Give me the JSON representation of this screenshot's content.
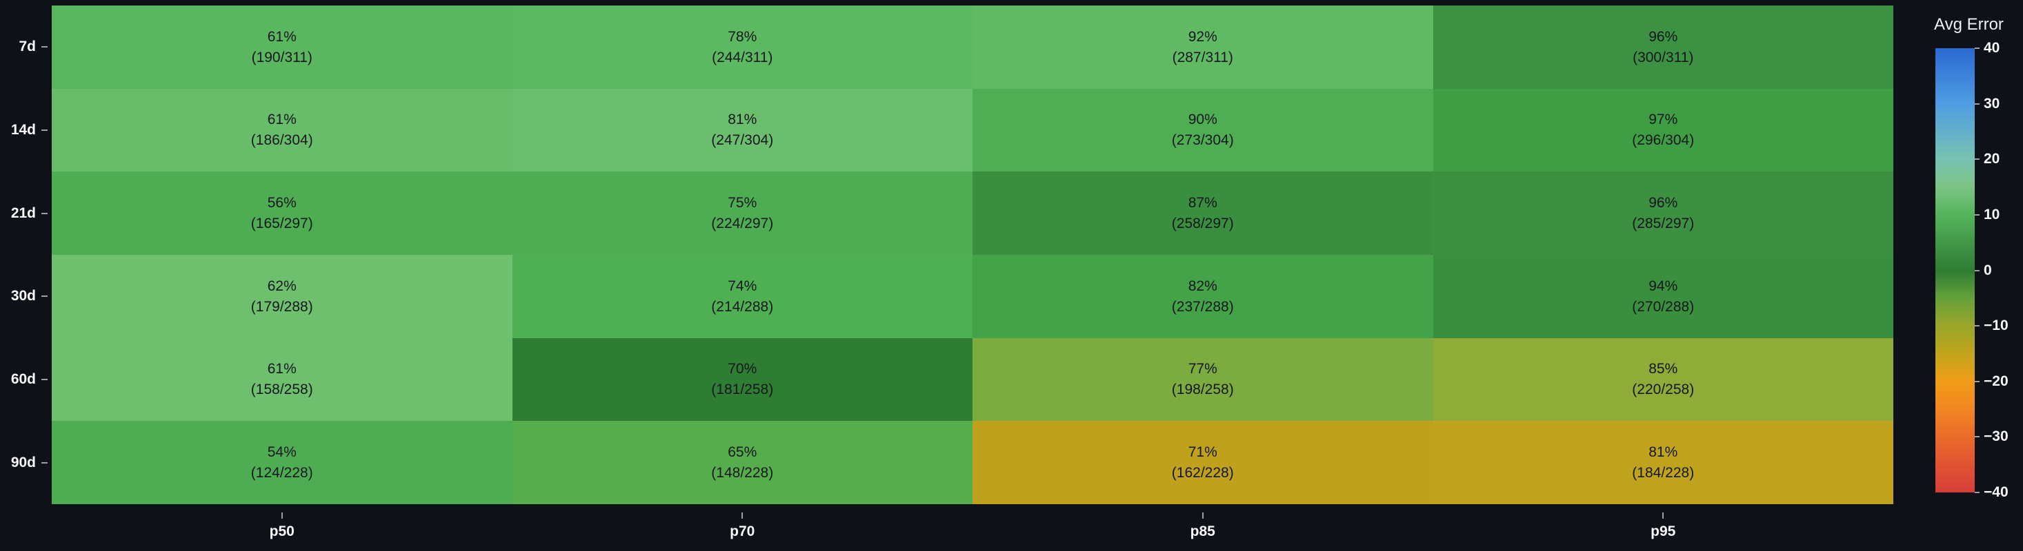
{
  "background": "#0e1117",
  "chart_data": {
    "type": "heatmap",
    "title": "",
    "xlabel": "",
    "ylabel": "",
    "x_labels": [
      "p50",
      "p70",
      "p85",
      "p95"
    ],
    "y_labels": [
      "7d",
      "14d",
      "21d",
      "30d",
      "60d",
      "90d"
    ],
    "cell_text_color": "#14171c",
    "rows": [
      {
        "label": "7d",
        "cells": [
          {
            "pct": "61%",
            "frac": "(190/311)",
            "color": "#5bb660"
          },
          {
            "pct": "78%",
            "frac": "(244/311)",
            "color": "#5cb861"
          },
          {
            "pct": "92%",
            "frac": "(287/311)",
            "color": "#60ba64"
          },
          {
            "pct": "96%",
            "frac": "(300/311)",
            "color": "#3d9143"
          }
        ]
      },
      {
        "label": "14d",
        "cells": [
          {
            "pct": "61%",
            "frac": "(186/304)",
            "color": "#68bd6b"
          },
          {
            "pct": "81%",
            "frac": "(247/304)",
            "color": "#6abe6d"
          },
          {
            "pct": "90%",
            "frac": "(273/304)",
            "color": "#4fae53"
          },
          {
            "pct": "97%",
            "frac": "(296/304)",
            "color": "#3f9d44"
          }
        ]
      },
      {
        "label": "21d",
        "cells": [
          {
            "pct": "56%",
            "frac": "(165/297)",
            "color": "#4ead53"
          },
          {
            "pct": "75%",
            "frac": "(224/297)",
            "color": "#4ead52"
          },
          {
            "pct": "87%",
            "frac": "(258/297)",
            "color": "#3a8e3f"
          },
          {
            "pct": "96%",
            "frac": "(285/297)",
            "color": "#3d9041"
          }
        ]
      },
      {
        "label": "30d",
        "cells": [
          {
            "pct": "62%",
            "frac": "(179/288)",
            "color": "#6ec06f"
          },
          {
            "pct": "74%",
            "frac": "(214/288)",
            "color": "#4fb053"
          },
          {
            "pct": "82%",
            "frac": "(237/288)",
            "color": "#44a348"
          },
          {
            "pct": "94%",
            "frac": "(270/288)",
            "color": "#398f3e"
          }
        ]
      },
      {
        "label": "60d",
        "cells": [
          {
            "pct": "61%",
            "frac": "(158/258)",
            "color": "#6ec06f"
          },
          {
            "pct": "70%",
            "frac": "(181/258)",
            "color": "#2e7d33"
          },
          {
            "pct": "77%",
            "frac": "(198/258)",
            "color": "#7cab3f"
          },
          {
            "pct": "85%",
            "frac": "(220/258)",
            "color": "#8fab38"
          }
        ]
      },
      {
        "label": "90d",
        "cells": [
          {
            "pct": "54%",
            "frac": "(124/228)",
            "color": "#4ead52"
          },
          {
            "pct": "65%",
            "frac": "(148/228)",
            "color": "#55ae4b"
          },
          {
            "pct": "71%",
            "frac": "(162/228)",
            "color": "#bfa11d"
          },
          {
            "pct": "81%",
            "frac": "(184/228)",
            "color": "#c0a31d"
          }
        ]
      }
    ],
    "colorbar": {
      "title": "Avg Error",
      "min": -40,
      "max": 40,
      "ticks": [
        {
          "v": 40,
          "label": "40"
        },
        {
          "v": 30,
          "label": "30"
        },
        {
          "v": 20,
          "label": "20"
        },
        {
          "v": 10,
          "label": "10"
        },
        {
          "v": 0,
          "label": "0"
        },
        {
          "v": -10,
          "label": "−10"
        },
        {
          "v": -20,
          "label": "−20"
        },
        {
          "v": -30,
          "label": "−30"
        },
        {
          "v": -40,
          "label": "−40"
        }
      ],
      "gradient": [
        {
          "color": "#2a69d2",
          "pos": 0
        },
        {
          "color": "#4f9de2",
          "pos": 12.5
        },
        {
          "color": "#77c2b2",
          "pos": 25
        },
        {
          "color": "#7ec487",
          "pos": 31
        },
        {
          "color": "#55b45c",
          "pos": 37.5
        },
        {
          "color": "#419647",
          "pos": 44
        },
        {
          "color": "#2f7d33",
          "pos": 50
        },
        {
          "color": "#63a03a",
          "pos": 56
        },
        {
          "color": "#9aa62a",
          "pos": 62.5
        },
        {
          "color": "#c3a51c",
          "pos": 69
        },
        {
          "color": "#f09c16",
          "pos": 75
        },
        {
          "color": "#f28722",
          "pos": 81
        },
        {
          "color": "#ea6b2a",
          "pos": 87.5
        },
        {
          "color": "#e05232",
          "pos": 94
        },
        {
          "color": "#d63e38",
          "pos": 100
        }
      ]
    }
  }
}
